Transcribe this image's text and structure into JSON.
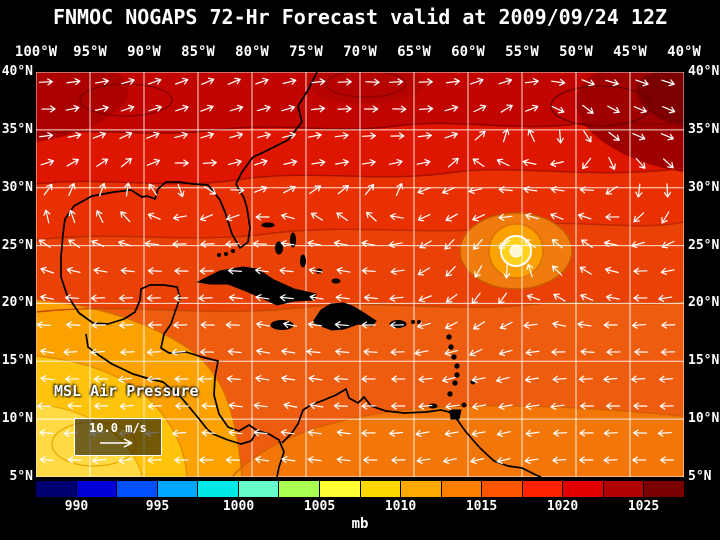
{
  "colors": {
    "background": "#000000",
    "text": "#ffffff",
    "grid": "#ffffff",
    "coastline": "#000000",
    "wind_arrow": "#ffffff"
  },
  "header": {
    "title": "FNMOC NOGAPS 72-Hr Forecast valid at 2009/09/24 12Z"
  },
  "map": {
    "lon_labels": [
      "100°W",
      "95°W",
      "90°W",
      "85°W",
      "80°W",
      "75°W",
      "70°W",
      "65°W",
      "60°W",
      "55°W",
      "50°W",
      "45°W",
      "40°W"
    ],
    "lat_labels": [
      "40°N",
      "35°N",
      "30°N",
      "25°N",
      "20°N",
      "15°N",
      "10°N",
      "5°N"
    ],
    "field_label": "MSL Air Pressure",
    "wind_legend_speed": "10.0 m/s"
  },
  "colorbar": {
    "unit_label": "mb",
    "tick_labels": [
      "990",
      "995",
      "1000",
      "1005",
      "1010",
      "1015",
      "1020",
      "1025"
    ],
    "segment_colors": [
      "#000070",
      "#0000d6",
      "#0050ff",
      "#00a8ff",
      "#00e8e8",
      "#66ffcc",
      "#aaff55",
      "#ffff33",
      "#ffd700",
      "#ffaa00",
      "#ff7f00",
      "#ff5500",
      "#ff2200",
      "#e00000",
      "#b00000",
      "#7a0000"
    ],
    "range_mb": [
      987.5,
      1027.5
    ]
  },
  "chart_data": {
    "type": "map",
    "title": "FNMOC NOGAPS 72-Hr Forecast valid at 2009/09/24 12Z",
    "field": "MSL Air Pressure (mb)",
    "region": {
      "lon_range": [
        "100°W",
        "40°W"
      ],
      "lat_range": [
        "5°N",
        "40°N"
      ]
    },
    "colorbar_ticks_mb": [
      990,
      995,
      1000,
      1005,
      1010,
      1015,
      1020,
      1025
    ],
    "wind_reference_speed": "10.0 m/s",
    "features": [
      {
        "name": "tropical-cyclone",
        "approx_lon": "55°W",
        "approx_lat": "24.5°N",
        "note": "closed circular low with yellow core and white ring contour"
      },
      {
        "name": "high-pressure-band",
        "area": "30°N–40°N across top of map",
        "approx_mb": "1018-1026 (red to dark red)"
      },
      {
        "name": "low-pressure-area",
        "area": "southwest Gulf / Central America / eastern Pacific corner",
        "approx_mb": "1004-1010 (yellow to orange)"
      },
      {
        "name": "trade-wind-flow",
        "area": "south of 25°N",
        "note": "easterly wind arrows pointing west"
      }
    ]
  }
}
